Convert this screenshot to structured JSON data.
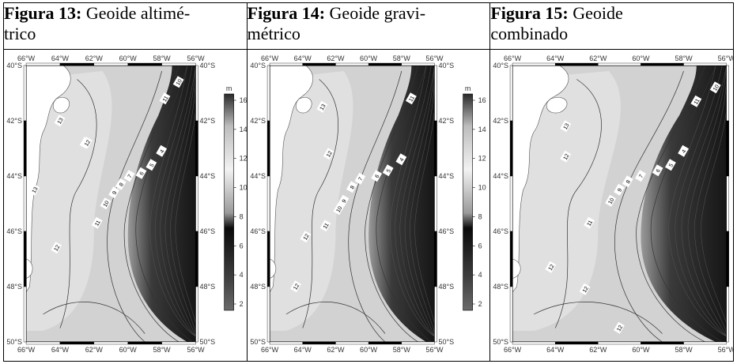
{
  "figures": [
    {
      "label": "Figura 13:",
      "title_line1": " Geoide altimé-",
      "title_line2": "trico",
      "has_colorbar": true,
      "contour_labels": [
        "10",
        "11",
        "13",
        "12",
        "13",
        "12",
        "9",
        "10",
        "11",
        "12",
        "8",
        "7",
        "6",
        "5",
        "4"
      ]
    },
    {
      "label": "Figura 14:",
      "title_line1": " Geoide gravi-",
      "title_line2": "métrico",
      "has_colorbar": true,
      "contour_labels": [
        "11",
        "13",
        "12",
        "10",
        "9",
        "8",
        "7",
        "6",
        "5",
        "4",
        "11",
        "12",
        "12"
      ]
    },
    {
      "label": "Figura 15:",
      "title_line1": " Geoide",
      "title_line2": "combinado",
      "has_colorbar": false,
      "contour_labels": [
        "10",
        "11",
        "13",
        "12",
        "10",
        "9",
        "8",
        "7",
        "6",
        "5",
        "4",
        "11",
        "12",
        "12",
        "12"
      ]
    }
  ],
  "map_axes": {
    "lon_ticks": [
      "66°W",
      "64°W",
      "62°W",
      "60°W",
      "58°W",
      "56°W"
    ],
    "lat_ticks": [
      "40°S",
      "42°S",
      "44°S",
      "46°S",
      "48°S",
      "50°S"
    ]
  },
  "colorbar": {
    "unit": "m",
    "ticks": [
      "16",
      "14",
      "12",
      "10",
      "8",
      "6",
      "4",
      "2"
    ]
  }
}
